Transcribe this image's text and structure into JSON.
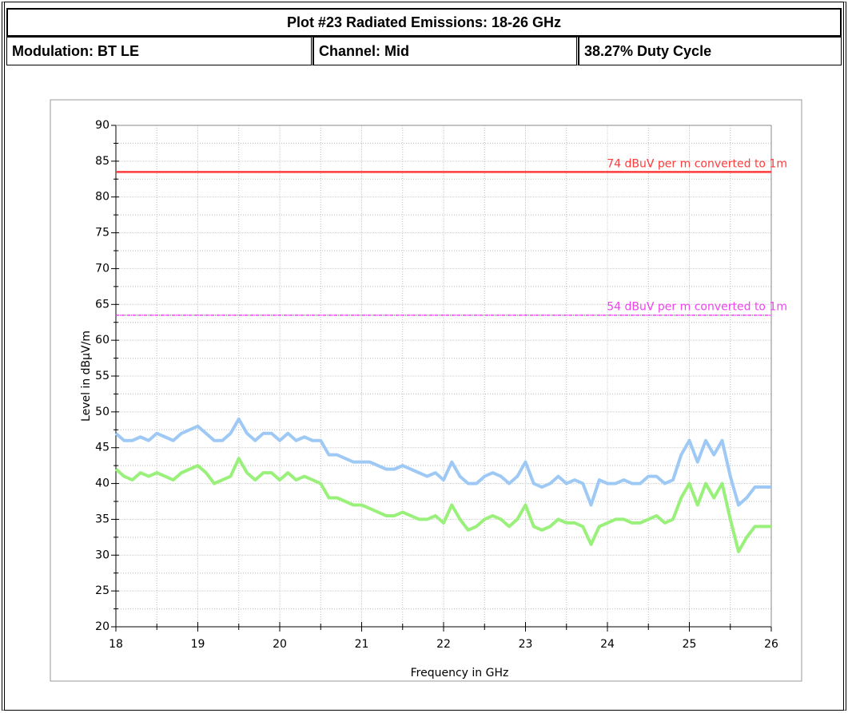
{
  "header": {
    "title": "Plot #23 Radiated Emissions: 18-26 GHz",
    "cells": [
      "Modulation: BT LE",
      "Channel: Mid",
      "38.27% Duty Cycle"
    ]
  },
  "chart_data": {
    "type": "line",
    "xlabel": "Frequency in GHz",
    "ylabel": "Level in dBµV/m",
    "xlim": [
      18,
      26
    ],
    "ylim": [
      20,
      90
    ],
    "xticks": [
      18,
      19,
      20,
      21,
      22,
      23,
      24,
      25,
      26
    ],
    "yticks": [
      20,
      25,
      30,
      35,
      40,
      45,
      50,
      55,
      60,
      65,
      70,
      75,
      80,
      85,
      90
    ],
    "grid": true,
    "limit_lines": [
      {
        "label": "74 dBuV per m converted to 1m",
        "value": 83.5,
        "color": "#ff3b3b"
      },
      {
        "label": "54 dBuV per m converted to 1m",
        "value": 63.5,
        "color": "#ee44ee"
      }
    ],
    "x": [
      18.0,
      18.1,
      18.2,
      18.3,
      18.4,
      18.5,
      18.6,
      18.7,
      18.8,
      18.9,
      19.0,
      19.1,
      19.2,
      19.3,
      19.4,
      19.5,
      19.6,
      19.7,
      19.8,
      19.9,
      20.0,
      20.1,
      20.2,
      20.3,
      20.4,
      20.5,
      20.6,
      20.7,
      20.8,
      20.9,
      21.0,
      21.1,
      21.2,
      21.3,
      21.4,
      21.5,
      21.6,
      21.7,
      21.8,
      21.9,
      22.0,
      22.1,
      22.2,
      22.3,
      22.4,
      22.5,
      22.6,
      22.7,
      22.8,
      22.9,
      23.0,
      23.1,
      23.2,
      23.3,
      23.4,
      23.5,
      23.6,
      23.7,
      23.8,
      23.9,
      24.0,
      24.1,
      24.2,
      24.3,
      24.4,
      24.5,
      24.6,
      24.7,
      24.8,
      24.9,
      25.0,
      25.1,
      25.2,
      25.3,
      25.4,
      25.5,
      25.6,
      25.7,
      25.8,
      25.9,
      26.0
    ],
    "series": [
      {
        "color": "#9ec9f5",
        "values": [
          47,
          46,
          46,
          46.5,
          46,
          47,
          46.5,
          46,
          47,
          47.5,
          48,
          47,
          46,
          46,
          47,
          49,
          47,
          46,
          47,
          47,
          46,
          47,
          46,
          46.5,
          46,
          46,
          44,
          44,
          43.5,
          43,
          43,
          43,
          42.5,
          42,
          42,
          42.5,
          42,
          41.5,
          41,
          41.5,
          40.5,
          43,
          41,
          40,
          40,
          41,
          41.5,
          41,
          40,
          41,
          43,
          40,
          39.5,
          40,
          41,
          40,
          40.5,
          40,
          37,
          40.5,
          40,
          40,
          40.5,
          40,
          40,
          41,
          41,
          40,
          40.5,
          44,
          46,
          43,
          46,
          44,
          46,
          41,
          37,
          38,
          39.5,
          39.5,
          39.5
        ]
      },
      {
        "color": "#99f07a",
        "values": [
          42,
          41,
          40.5,
          41.5,
          41,
          41.5,
          41,
          40.5,
          41.5,
          42,
          42.5,
          41.5,
          40,
          40.5,
          41,
          43.5,
          41.5,
          40.5,
          41.5,
          41.5,
          40.5,
          41.5,
          40.5,
          41,
          40.5,
          40,
          38,
          38,
          37.5,
          37,
          37,
          36.5,
          36,
          35.5,
          35.5,
          36,
          35.5,
          35,
          35,
          35.5,
          34.5,
          37,
          35,
          33.5,
          34,
          35,
          35.5,
          35,
          34,
          35,
          37,
          34,
          33.5,
          34,
          35,
          34.5,
          34.5,
          34,
          31.5,
          34,
          34.5,
          35,
          35,
          34.5,
          34.5,
          35,
          35.5,
          34.5,
          35,
          38,
          40,
          37,
          40,
          38,
          40,
          35,
          30.5,
          32.5,
          34,
          34,
          34
        ]
      }
    ]
  }
}
